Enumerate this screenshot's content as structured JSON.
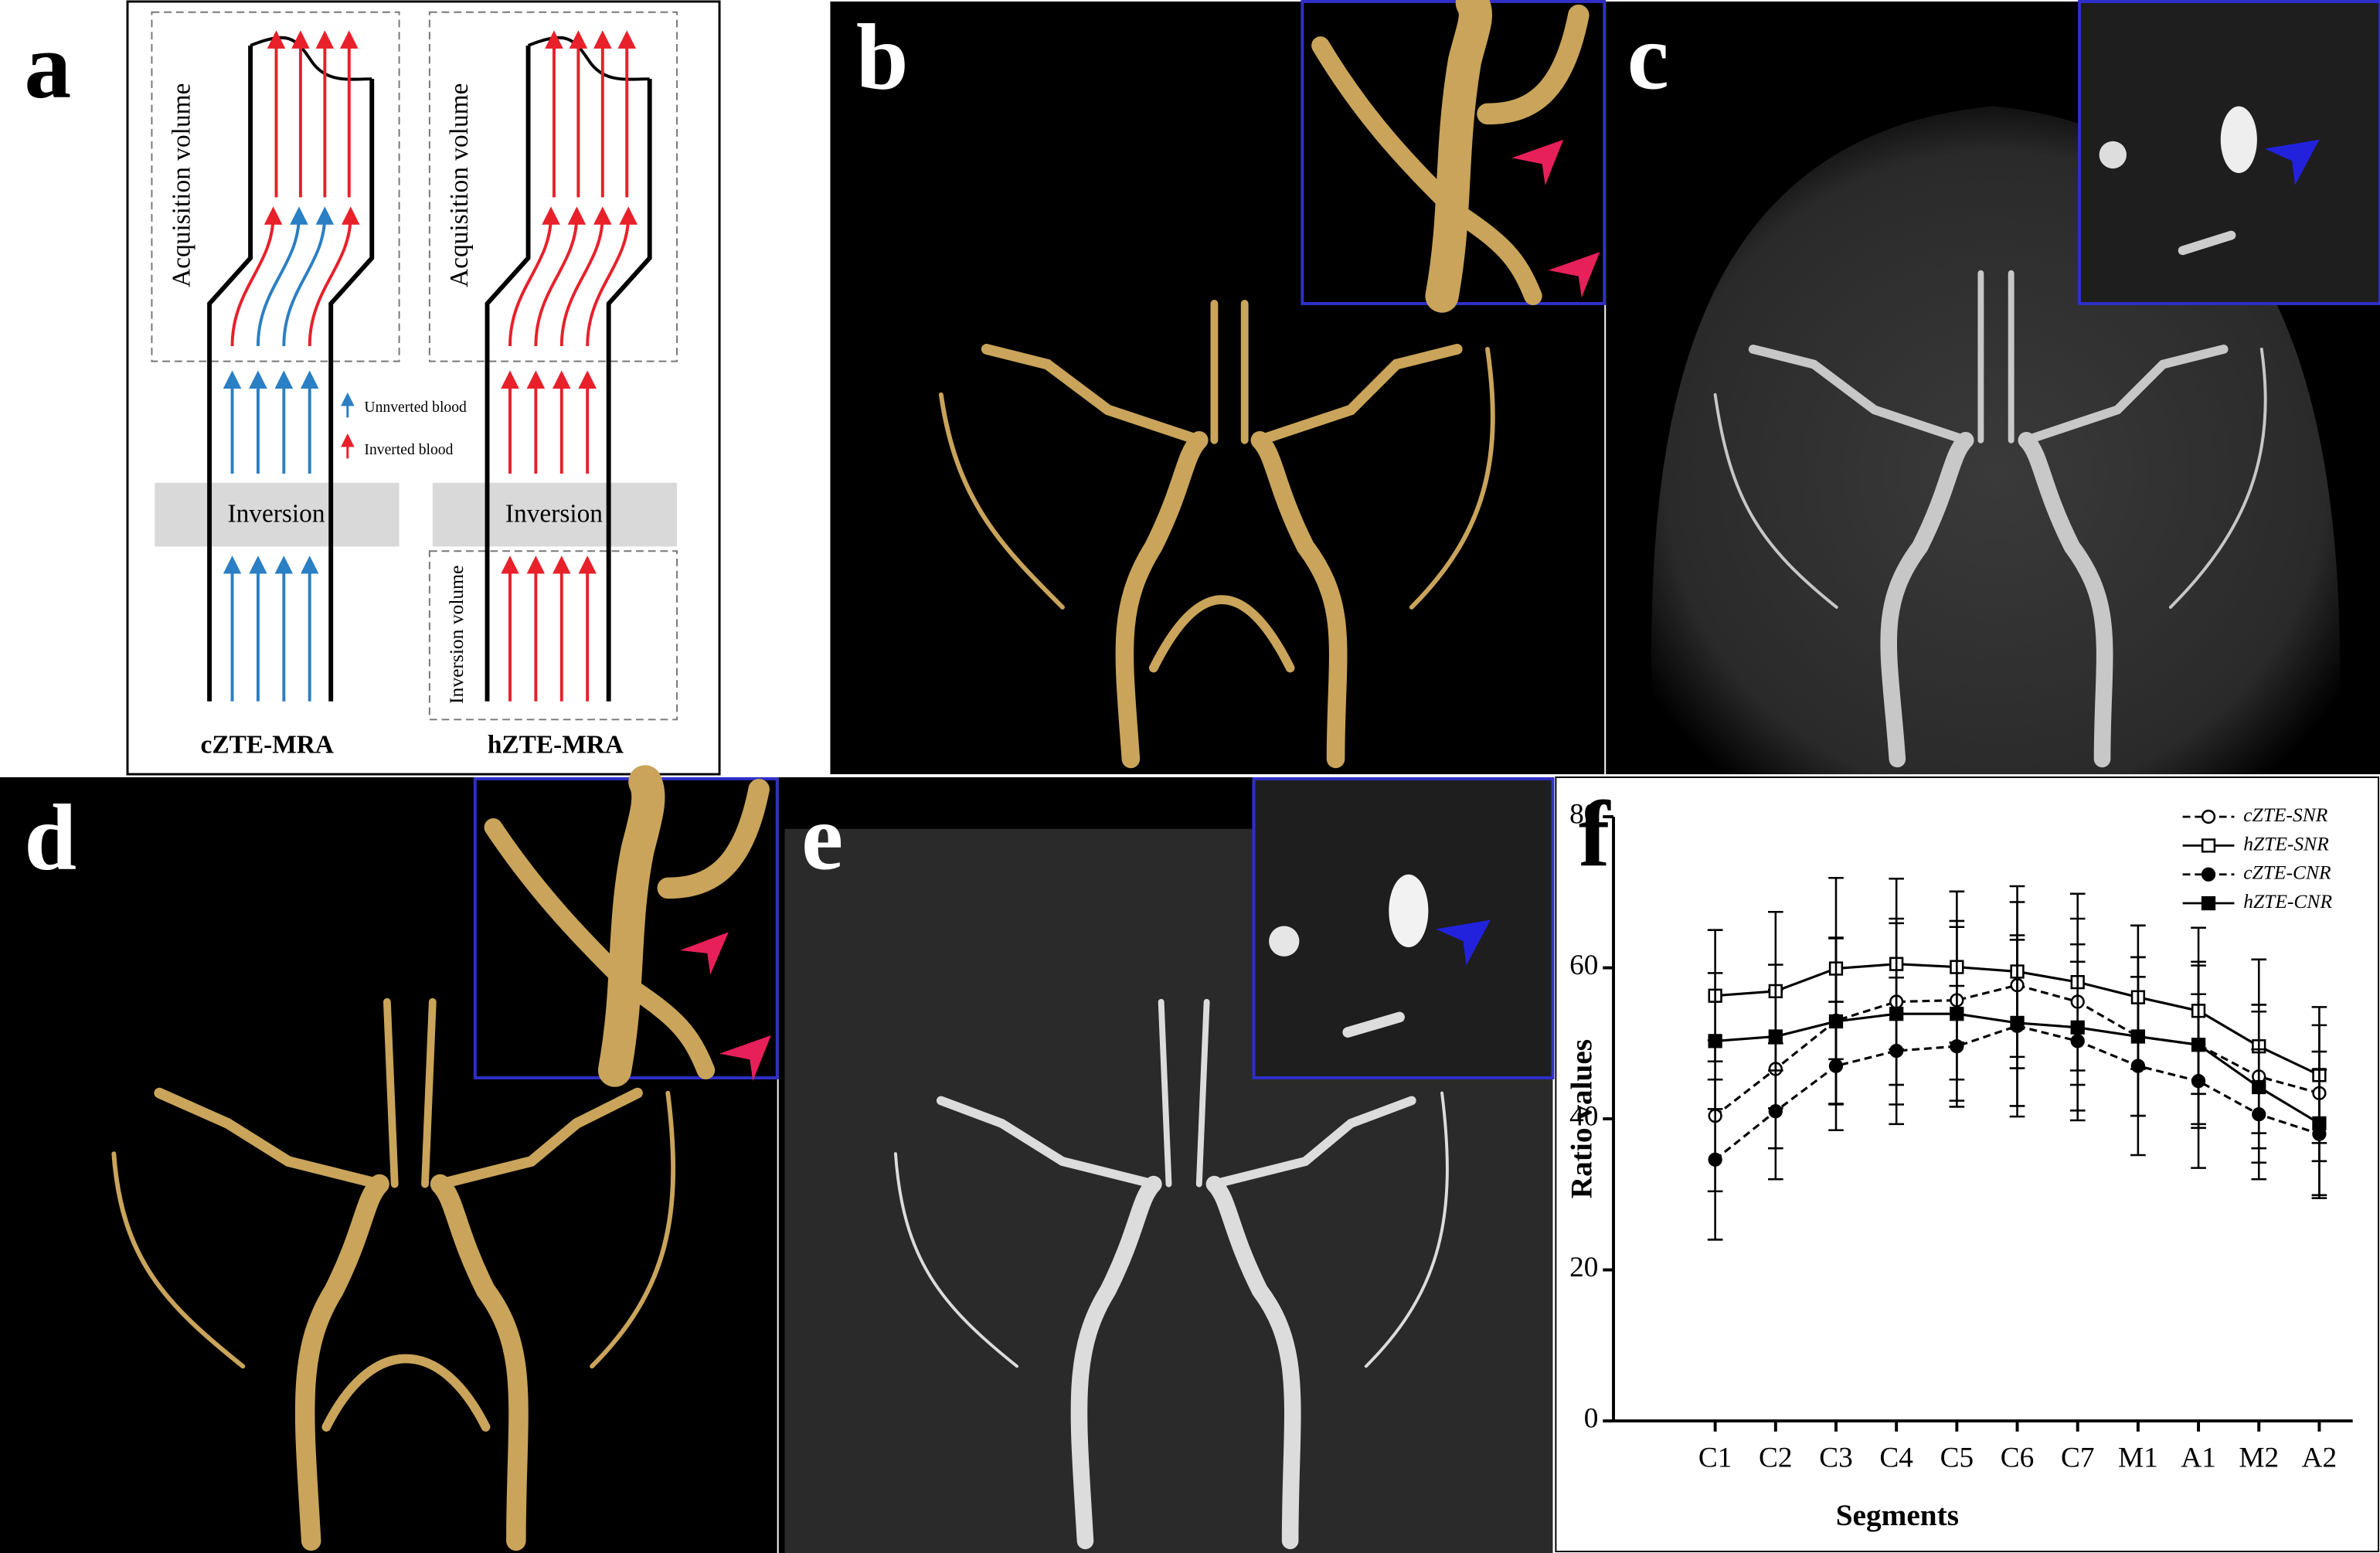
{
  "panel_labels": [
    "a",
    "b",
    "c",
    "d",
    "e",
    "f"
  ],
  "diagram": {
    "acquisition_volume": [
      "Acquisition volume",
      "Acquisition volume"
    ],
    "inversion": [
      "Inversion",
      "Inversion"
    ],
    "inversion_volume": "Inversion volume",
    "legend": [
      "Unnverted blood",
      "Inverted blood"
    ],
    "captions": [
      "cZTE-MRA",
      "hZTE-MRA"
    ]
  },
  "chart_data": {
    "type": "line",
    "x_label": "Segments",
    "y_label": "Ratio values",
    "categories": [
      "C1",
      "C2",
      "C3",
      "C4",
      "C5",
      "C6",
      "C7",
      "M1",
      "A1",
      "M2",
      "A2"
    ],
    "ylim": [
      0,
      80
    ],
    "yticks": [
      0,
      20,
      40,
      60,
      80
    ],
    "legend": "top-right",
    "series": [
      {
        "name": "cZTE-SNR",
        "color": "#000000",
        "line_style": "dashed",
        "marker": "open-circle",
        "values": [
          40.4,
          46.6,
          53,
          55.5,
          55.7,
          57.7,
          55.5,
          50.9,
          49.8,
          45.6,
          43.4
        ],
        "errors": [
          10,
          10.5,
          11,
          11,
          10.5,
          11,
          11,
          10.5,
          10.5,
          9.5,
          9
        ]
      },
      {
        "name": "hZTE-SNR",
        "color": "#000000",
        "line_style": "solid",
        "marker": "open-square",
        "values": [
          56.3,
          56.9,
          59.9,
          60.5,
          60.1,
          59.5,
          58.1,
          56.1,
          54.3,
          49.6,
          45.8
        ],
        "errors": [
          8.7,
          10.5,
          12,
          11.3,
          10,
          11.3,
          11.7,
          9.5,
          11,
          11.5,
          9
        ]
      },
      {
        "name": "cZTE-CNR",
        "color": "#000000",
        "line_style": "dashed",
        "marker": "filled-circle",
        "values": [
          34.6,
          41,
          47,
          49,
          49.6,
          52.3,
          50.3,
          47,
          45,
          40.6,
          38
        ],
        "errors": [
          10.6,
          9,
          8.5,
          9.7,
          8,
          12,
          10.5,
          11.8,
          11.5,
          8.6,
          8.5
        ]
      },
      {
        "name": "hZTE-CNR",
        "color": "#000000",
        "line_style": "solid",
        "marker": "filled-square",
        "values": [
          50.3,
          50.9,
          52.9,
          53.9,
          53.9,
          52.7,
          52.1,
          50.9,
          49.8,
          44.2,
          39.4
        ],
        "errors": [
          9,
          9.5,
          11,
          12,
          11.5,
          11,
          11,
          10.5,
          11,
          10,
          9.5
        ]
      }
    ]
  }
}
